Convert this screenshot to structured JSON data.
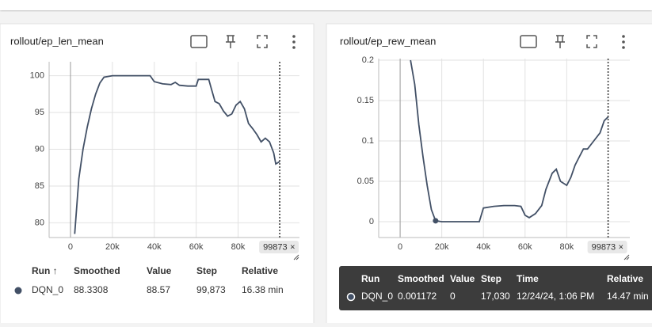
{
  "chart_data": [
    {
      "type": "line",
      "title": "rollout/ep_len_mean",
      "x": [
        2000,
        4000,
        6000,
        8000,
        10000,
        12000,
        14000,
        16000,
        20000,
        30000,
        38000,
        40000,
        44000,
        48000,
        50000,
        52000,
        56000,
        60000,
        61000,
        66000,
        67000,
        69000,
        71000,
        73000,
        75000,
        77000,
        79000,
        81000,
        83000,
        85000,
        87000,
        89000,
        91000,
        93000,
        95000,
        97000,
        98000,
        99873
      ],
      "series": [
        {
          "name": "DQN_0",
          "color": "#425066",
          "values": [
            78.5,
            86,
            90,
            93,
            95.5,
            97.5,
            99,
            99.8,
            100,
            100,
            100,
            99.2,
            98.9,
            98.8,
            99.1,
            98.7,
            98.6,
            98.6,
            99.5,
            99.5,
            98.5,
            96.5,
            96.2,
            95.2,
            94.5,
            94.8,
            96,
            96.5,
            95.5,
            93.5,
            92.8,
            92,
            91,
            91.5,
            91,
            89.5,
            88,
            88.33
          ]
        }
      ],
      "xlim": [
        -10200,
        109300
      ],
      "xticks": [
        {
          "value": 0,
          "label": "0"
        },
        {
          "value": 20000,
          "label": "20k"
        },
        {
          "value": 40000,
          "label": "40k"
        },
        {
          "value": 60000,
          "label": "60k"
        },
        {
          "value": 80000,
          "label": "80k"
        }
      ],
      "ylim": [
        78,
        101.9
      ],
      "yticks": [
        80,
        85,
        90,
        95,
        100
      ],
      "cursor": 99873,
      "grid": true
    },
    {
      "type": "line",
      "title": "rollout/ep_rew_mean",
      "x": [
        5000,
        7000,
        9000,
        11000,
        13000,
        15000,
        17030,
        20000,
        38000,
        40000,
        45000,
        50000,
        55000,
        58000,
        60000,
        62000,
        65000,
        68000,
        70000,
        73000,
        75000,
        77000,
        80000,
        82000,
        84000,
        86000,
        88000,
        90000,
        93000,
        96000,
        98000,
        100000
      ],
      "series": [
        {
          "name": "DQN_0",
          "color": "#425066",
          "values": [
            0.2,
            0.17,
            0.12,
            0.08,
            0.045,
            0.015,
            0.001172,
            0,
            0,
            0.017,
            0.019,
            0.02,
            0.02,
            0.019,
            0.008,
            0.005,
            0.01,
            0.02,
            0.04,
            0.06,
            0.065,
            0.05,
            0.045,
            0.055,
            0.07,
            0.08,
            0.09,
            0.09,
            0.1,
            0.11,
            0.125,
            0.13
          ]
        }
      ],
      "xlim": [
        -10300,
        110300
      ],
      "xticks": [
        {
          "value": 0,
          "label": "0"
        },
        {
          "value": 20000,
          "label": "20k"
        },
        {
          "value": 40000,
          "label": "40k"
        },
        {
          "value": 60000,
          "label": "60k"
        },
        {
          "value": 80000,
          "label": "80k"
        }
      ],
      "ylim": [
        -0.0196,
        0.202
      ],
      "yticks": [
        0,
        0.05,
        0.1,
        0.15,
        0.2
      ],
      "cursor": 99873,
      "hover_index": 6,
      "grid": true
    }
  ],
  "table": {
    "headers": [
      "Run ↑",
      "Smoothed",
      "Value",
      "Step",
      "Relative"
    ],
    "rows": [
      [
        "DQN_0",
        "88.3308",
        "88.57",
        "99,873",
        "16.38 min"
      ]
    ]
  },
  "tooltip": {
    "headers": [
      "Run",
      "Smoothed",
      "Value",
      "Step",
      "Time",
      "Relative"
    ],
    "rows": [
      [
        "DQN_0",
        "0.001172",
        "0",
        "17,030",
        "12/24/24, 1:06 PM",
        "14.47 min"
      ]
    ]
  }
}
